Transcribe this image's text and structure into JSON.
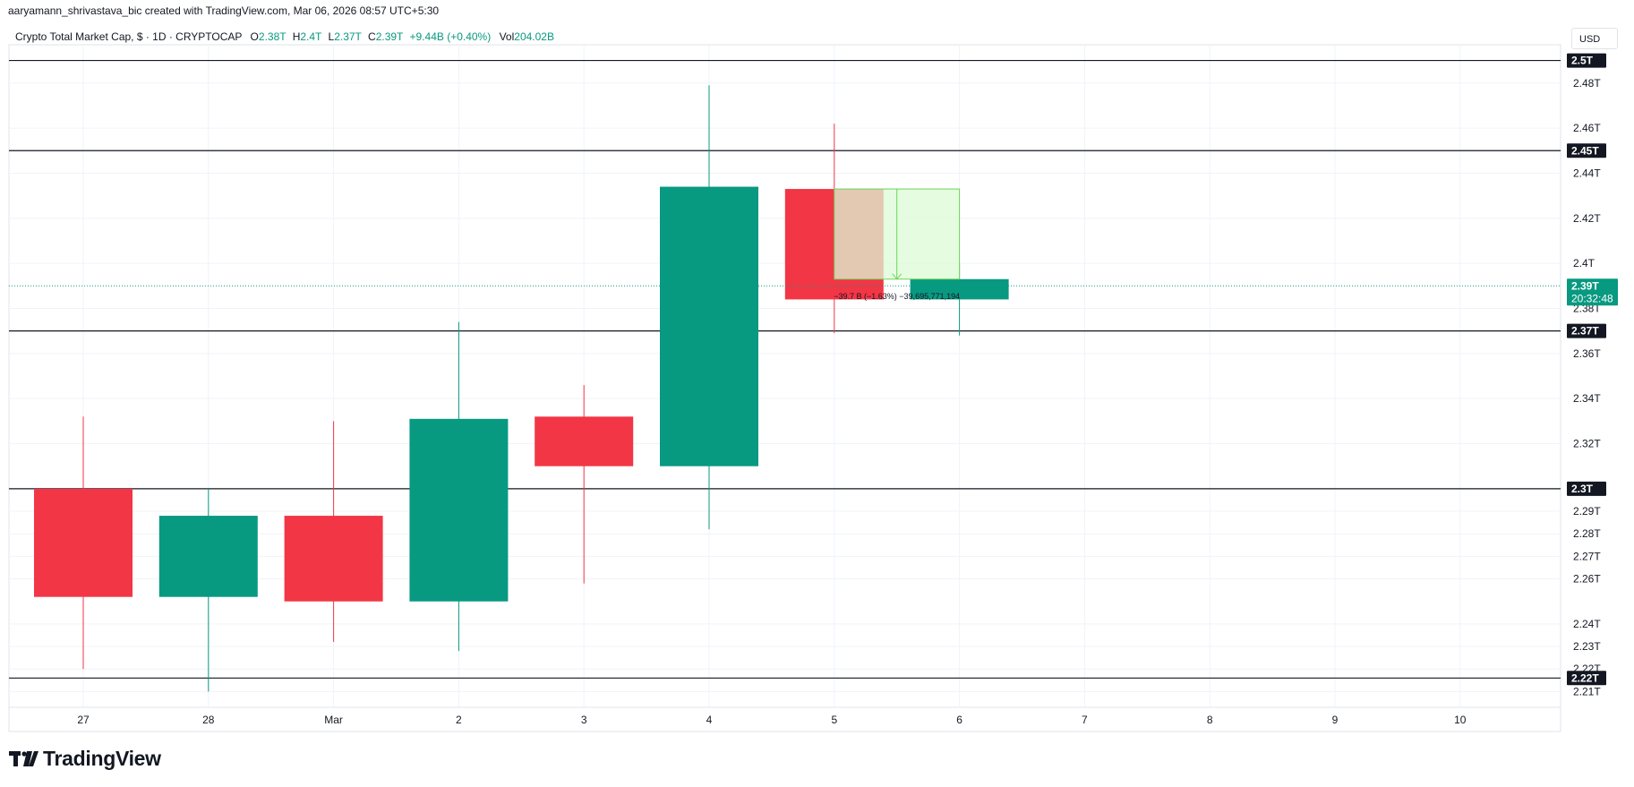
{
  "header": {
    "attribution": "aaryamann_shrivastava_bic created with TradingView.com, Mar 06, 2026 08:57 UTC+5:30"
  },
  "legend": {
    "symbol": "Crypto Total Market Cap, $ · 1D · CRYPTOCAP",
    "o_label": "O",
    "o_value": "2.38T",
    "h_label": "H",
    "h_value": "2.4T",
    "l_label": "L",
    "l_value": "2.37T",
    "c_label": "C",
    "c_value": "2.39T",
    "change": "+9.44B (+0.40%)",
    "vol_label": "Vol",
    "vol_value": "204.02B"
  },
  "currency_button": "USD",
  "brand": {
    "name": "TradingView"
  },
  "colors": {
    "up": "#089981",
    "down": "#f23645",
    "measure_fill": "#ddfbd6",
    "measure_stroke": "#6ad45a"
  },
  "chart_data": {
    "type": "candlestick",
    "x_tick_labels": [
      "27",
      "28",
      "Mar",
      "2",
      "3",
      "4",
      "5",
      "6",
      "7",
      "8",
      "9",
      "10"
    ],
    "candles": [
      {
        "x": "27",
        "open": 2.3,
        "high": 2.332,
        "low": 2.22,
        "close": 2.252
      },
      {
        "x": "28",
        "open": 2.252,
        "high": 2.3,
        "low": 2.21,
        "close": 2.288
      },
      {
        "x": "Mar",
        "open": 2.288,
        "high": 2.33,
        "low": 2.232,
        "close": 2.25
      },
      {
        "x": "2",
        "open": 2.25,
        "high": 2.374,
        "low": 2.228,
        "close": 2.331
      },
      {
        "x": "3",
        "open": 2.332,
        "high": 2.346,
        "low": 2.258,
        "close": 2.31
      },
      {
        "x": "4",
        "open": 2.31,
        "high": 2.479,
        "low": 2.282,
        "close": 2.434
      },
      {
        "x": "5",
        "open": 2.433,
        "high": 2.462,
        "low": 2.369,
        "close": 2.384
      },
      {
        "x": "6",
        "open": 2.384,
        "high": 2.4,
        "low": 2.368,
        "close": 2.393
      }
    ],
    "y_tick_labels": [
      "2.48T",
      "2.46T",
      "2.44T",
      "2.42T",
      "2.4T",
      "2.38T",
      "2.36T",
      "2.34T",
      "2.32T",
      "2.29T",
      "2.28T",
      "2.27T",
      "2.26T",
      "2.24T",
      "2.23T",
      "2.22T",
      "2.21T"
    ],
    "y_ticks": [
      2.48,
      2.46,
      2.44,
      2.42,
      2.4,
      2.38,
      2.36,
      2.34,
      2.32,
      2.29,
      2.28,
      2.27,
      2.26,
      2.24,
      2.23,
      2.22,
      2.21
    ],
    "ylim": [
      2.205,
      2.495
    ],
    "horizontal_lines": [
      {
        "value": 2.49,
        "label": "2.5T"
      },
      {
        "value": 2.45,
        "label": "2.45T"
      },
      {
        "value": 2.37,
        "label": "2.37T"
      },
      {
        "value": 2.3,
        "label": "2.3T"
      },
      {
        "value": 2.216,
        "label": "2.22T"
      }
    ],
    "last_price": {
      "value": 2.39,
      "label": "2.39T",
      "countdown": "20:32:48"
    },
    "measure": {
      "from_x": "5",
      "to_x": "6",
      "from_value": 2.433,
      "to_value": 2.393,
      "text": "−39.7 B (−1.63%) −39,695,771,194"
    }
  }
}
